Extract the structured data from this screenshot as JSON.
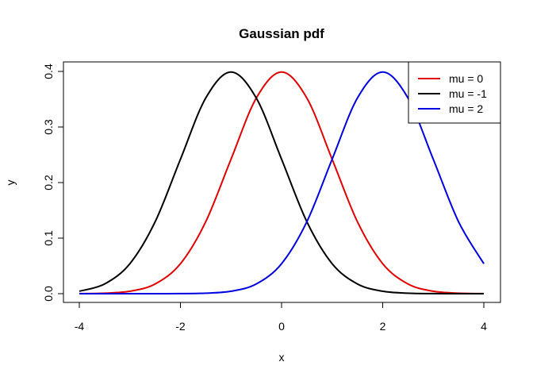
{
  "chart_data": {
    "type": "line",
    "title": "Gaussian pdf",
    "xlabel": "x",
    "ylabel": "y",
    "xlim": [
      -4,
      4
    ],
    "ylim": [
      0,
      0.4
    ],
    "xticks": [
      -4,
      -2,
      0,
      2,
      4
    ],
    "yticks": [
      0.0,
      0.1,
      0.2,
      0.3,
      0.4
    ],
    "xtick_labels": [
      "-4",
      "-2",
      "0",
      "2",
      "4"
    ],
    "ytick_labels": [
      "0.0",
      "0.1",
      "0.2",
      "0.3",
      "0.4"
    ],
    "grid": false,
    "legend_position": "top-right",
    "x": [
      -4.0,
      -3.5,
      -3.0,
      -2.5,
      -2.0,
      -1.5,
      -1.0,
      -0.5,
      0.0,
      0.5,
      1.0,
      1.5,
      2.0,
      2.5,
      3.0,
      3.5,
      4.0
    ],
    "series": [
      {
        "name": "mu = 0",
        "color": "#e00000",
        "values": [
          0.0001,
          0.0009,
          0.0044,
          0.0175,
          0.054,
          0.1295,
          0.242,
          0.3521,
          0.3989,
          0.3521,
          0.242,
          0.1295,
          0.054,
          0.0175,
          0.0044,
          0.0009,
          0.0001
        ]
      },
      {
        "name": "mu = -1",
        "color": "#000000",
        "values": [
          0.0044,
          0.0175,
          0.054,
          0.1295,
          0.242,
          0.3521,
          0.3989,
          0.3521,
          0.242,
          0.1295,
          0.054,
          0.0175,
          0.0044,
          0.0009,
          0.0001,
          0.0,
          0.0
        ]
      },
      {
        "name": "mu = 2",
        "color": "#0000e0",
        "values": [
          0.0,
          0.0,
          0.0,
          0.0,
          0.0001,
          0.0009,
          0.0044,
          0.0175,
          0.054,
          0.1295,
          0.242,
          0.3521,
          0.3989,
          0.3521,
          0.242,
          0.1295,
          0.054
        ]
      }
    ]
  }
}
